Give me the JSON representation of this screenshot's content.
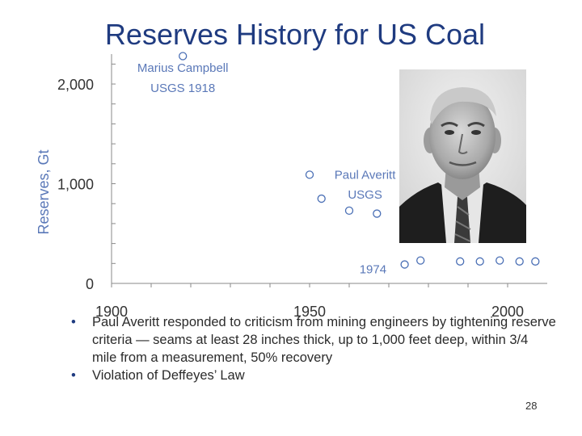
{
  "slide": {
    "title": "Reserves History for US Coal",
    "bullets": [
      "Paul Averitt responded to criticism from mining engineers by tightening reserve criteria — seams at least 28 inches thick, up to 1,000 feet deep, within 3/4 mile from a measurement, 50% recovery",
      "Violation of Deffeyes’ Law"
    ],
    "page_number": "28",
    "portrait_icon": "portrait-photo-of-man-in-suit"
  },
  "chart_data": {
    "type": "scatter",
    "ylabel": "Reserves, Gt",
    "xlabel": "",
    "xlim": [
      1900,
      2010
    ],
    "ylim": [
      0,
      2300
    ],
    "x_ticks": [
      1900,
      1950,
      2000
    ],
    "x_tick_labels": [
      "1900",
      "1950",
      "2000"
    ],
    "y_ticks": [
      0,
      1000,
      2000
    ],
    "y_tick_labels": [
      "0",
      "1,000",
      "2,000"
    ],
    "grid": false,
    "marker_color": "#4a6fb5",
    "axis_color": "#8a8a8a",
    "label_color": "#5a78b8",
    "points": [
      {
        "x": 1918,
        "y": 2280
      },
      {
        "x": 1950,
        "y": 1090
      },
      {
        "x": 1953,
        "y": 850
      },
      {
        "x": 1960,
        "y": 730
      },
      {
        "x": 1967,
        "y": 700
      },
      {
        "x": 1974,
        "y": 190
      },
      {
        "x": 1978,
        "y": 230
      },
      {
        "x": 1988,
        "y": 220
      },
      {
        "x": 1993,
        "y": 220
      },
      {
        "x": 1998,
        "y": 230
      },
      {
        "x": 2003,
        "y": 220
      },
      {
        "x": 2007,
        "y": 220
      }
    ],
    "annotations": [
      {
        "text": "Marius Campbell",
        "x": 1918,
        "y": 2120
      },
      {
        "text": "USGS 1918",
        "x": 1918,
        "y": 1920
      },
      {
        "text": "Paul Averitt",
        "x": 1964,
        "y": 1050
      },
      {
        "text": "USGS",
        "x": 1964,
        "y": 850
      },
      {
        "text": "1974",
        "x": 1966,
        "y": 100
      }
    ]
  }
}
